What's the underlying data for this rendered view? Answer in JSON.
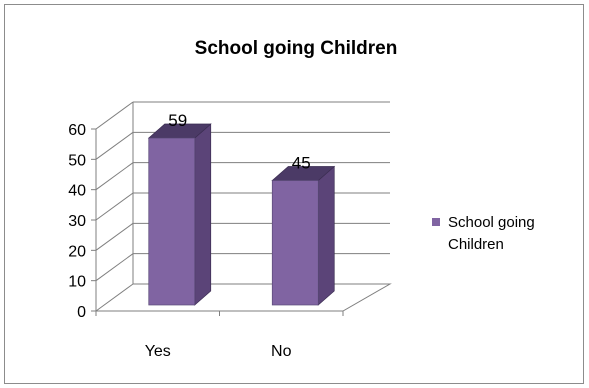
{
  "chart_data": {
    "type": "bar",
    "title": "School going Children",
    "categories": [
      "Yes",
      "No"
    ],
    "series": [
      {
        "name": "School going Children",
        "values": [
          59,
          45
        ]
      }
    ],
    "ylim": [
      0,
      60
    ],
    "yticks": [
      0,
      10,
      20,
      30,
      40,
      50,
      60
    ],
    "grid": true,
    "legend": "right",
    "style": "3d-column",
    "colors": {
      "front": "#8064a2",
      "side": "#5b4478",
      "top": "#4b3a66",
      "grid": "#7f7f7f"
    }
  }
}
